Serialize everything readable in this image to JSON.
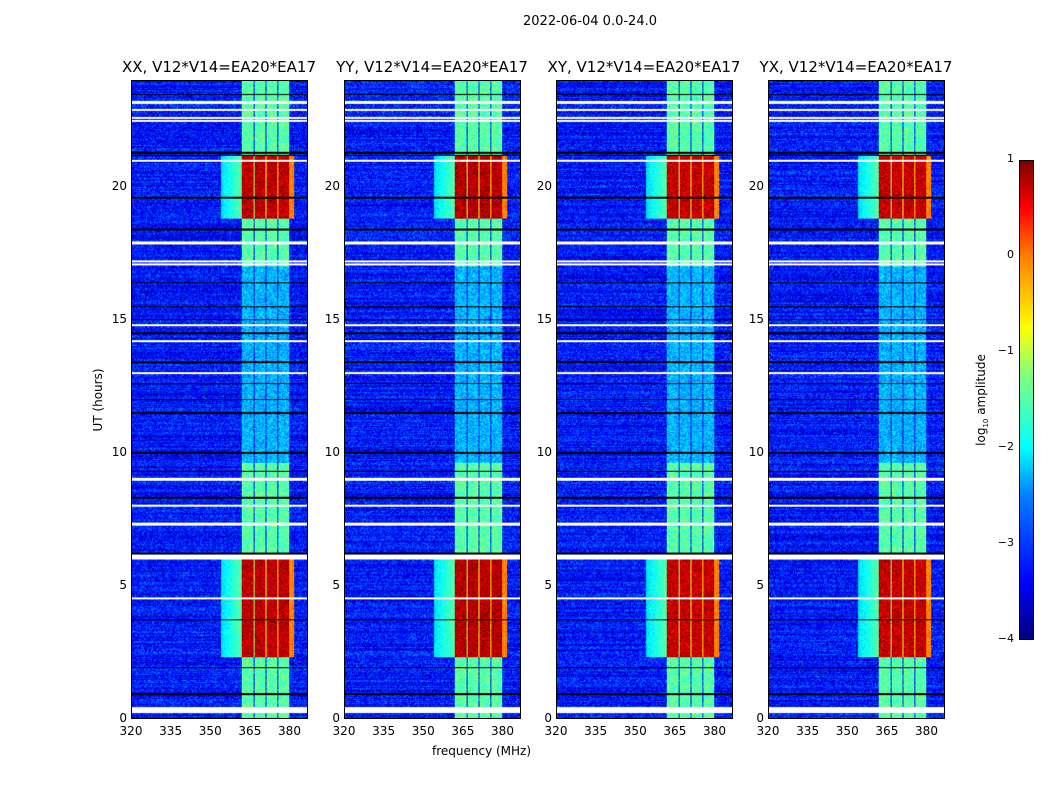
{
  "figure": {
    "suptitle": "2022-06-04 0.0-24.0"
  },
  "chart_data": {
    "type": "heatmap",
    "title": "2022-06-04 0.0-24.0",
    "xlabel": "frequency (MHz)",
    "ylabel": "UT (hours)",
    "xlim": [
      320,
      387
    ],
    "ylim": [
      0,
      24
    ],
    "xticks": [
      "320",
      "335",
      "350",
      "365",
      "380"
    ],
    "yticks": [
      "0",
      "5",
      "10",
      "15",
      "20"
    ],
    "panels": [
      {
        "title": "XX, V12*V14=EA20*EA17",
        "strength": 1.0
      },
      {
        "title": "YY, V12*V14=EA20*EA17",
        "strength": 1.05
      },
      {
        "title": "XY, V12*V14=EA20*EA17",
        "strength": 0.95
      },
      {
        "title": "YX, V12*V14=EA20*EA17",
        "strength": 0.95
      }
    ],
    "background_log_amplitude": -3.3,
    "subbands_mhz": [
      [
        362,
        366.5
      ],
      [
        367,
        371
      ],
      [
        371.5,
        375.5
      ],
      [
        376,
        380
      ]
    ],
    "strong_periods_hours": [
      [
        18.8,
        21.2
      ],
      [
        2.3,
        6.1
      ]
    ],
    "moderate_periods_hours": [
      [
        6.1,
        9.6
      ],
      [
        0,
        2.3
      ],
      [
        17,
        18.8
      ],
      [
        21.2,
        24
      ]
    ],
    "flagged_rows_hours": [
      0.25,
      0.3,
      0.35,
      4.5,
      6.0,
      6.1,
      7.3,
      8.0,
      9.0,
      13.0,
      14.2,
      14.8,
      17.1,
      17.2,
      17.9,
      21.0,
      22.5,
      22.6,
      22.9,
      23.2
    ],
    "zero_rows_hours": [
      0.9,
      1.9,
      3.7,
      6.2,
      8.3,
      9.3,
      10.0,
      11.5,
      12.0,
      12.6,
      13.4,
      14.5,
      15.0,
      15.5,
      16.4,
      18.4,
      19.6,
      21.2,
      21.3,
      23.5
    ],
    "colorbar": {
      "label": "log10 amplitude",
      "range": [
        -4,
        1
      ],
      "ticks": [
        "1",
        "0",
        "−1",
        "−2",
        "−3",
        "−4"
      ],
      "colormap": "jet"
    }
  }
}
